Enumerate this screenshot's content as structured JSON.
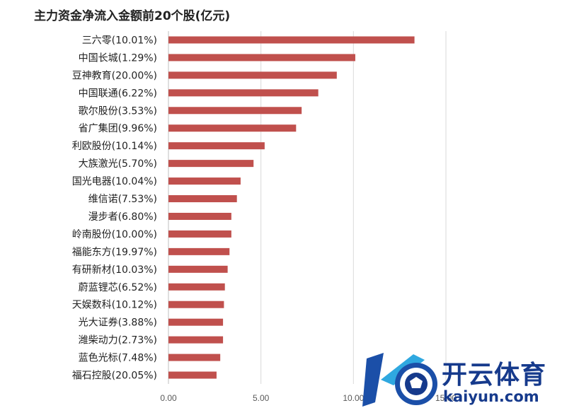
{
  "chart_data": {
    "type": "bar",
    "orientation": "horizontal",
    "title": "主力资金净流入金额前20个股(亿元)",
    "categories": [
      "三六零(10.01%)",
      "中国长城(1.29%)",
      "豆神教育(20.00%)",
      "中国联通(6.22%)",
      "歌尔股份(3.53%)",
      "省广集团(9.96%)",
      "利欧股份(10.14%)",
      "大族激光(5.70%)",
      "国光电器(10.04%)",
      "维信诺(7.53%)",
      "漫步者(6.80%)",
      "岭南股份(10.00%)",
      "福能东方(19.97%)",
      "有研新材(10.03%)",
      "蔚蓝锂芯(6.52%)",
      "天娱数科(10.12%)",
      "光大证券(3.88%)",
      "潍柴动力(2.73%)",
      "蓝色光标(7.48%)",
      "福石控股(20.05%)"
    ],
    "values": [
      13.3,
      10.1,
      9.1,
      8.1,
      7.2,
      6.9,
      5.2,
      4.6,
      3.9,
      3.7,
      3.4,
      3.4,
      3.3,
      3.2,
      3.05,
      3.0,
      2.95,
      2.95,
      2.8,
      2.6
    ],
    "xlim": [
      0,
      15
    ],
    "xticks": [
      "0.00",
      "5.00",
      "10.00",
      "15.00"
    ],
    "xtick_values": [
      0,
      5,
      10,
      15
    ],
    "grid": true,
    "bar_color": "#c0504d",
    "legend": "none"
  },
  "watermark": {
    "text_cn": "开云体育",
    "text_en": "kaiyun.com",
    "colors": {
      "primary": "#163a8c",
      "accent": "#2fa8e0"
    }
  }
}
